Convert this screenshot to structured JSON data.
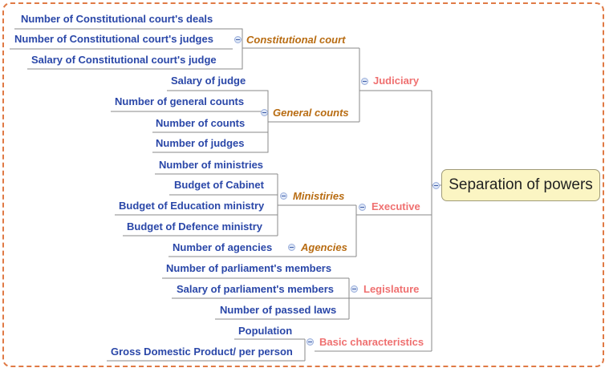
{
  "root": {
    "label": "Separation of powers"
  },
  "judiciary": {
    "label": "Judiciary",
    "constitutional_court": {
      "label": "Constitutional court",
      "items": [
        "Number of  Constitutional court's deals",
        "Number of  Constitutional court's judges",
        "Salary of Constitutional court's judge"
      ]
    },
    "general_counts": {
      "label": "General counts",
      "items": [
        "Salary of judge",
        "Number of general counts",
        "Number of counts",
        "Number of judges"
      ]
    }
  },
  "executive": {
    "label": "Executive",
    "ministries": {
      "label": "Ministiries",
      "items": [
        "Number of ministries",
        "Budget of Cabinet",
        "Budget of Education ministry",
        "Budget of Defence ministry"
      ]
    },
    "agencies": {
      "label": "Agencies",
      "items": [
        "Number of agencies"
      ]
    }
  },
  "legislature": {
    "label": "Legislature",
    "items": [
      "Number of parliament's members",
      "Salary of parliament's members",
      "Number of passed laws"
    ]
  },
  "basic": {
    "label": "Basic characteristics",
    "items": [
      "Population",
      "Gross Domestic Product/ per person"
    ]
  }
}
